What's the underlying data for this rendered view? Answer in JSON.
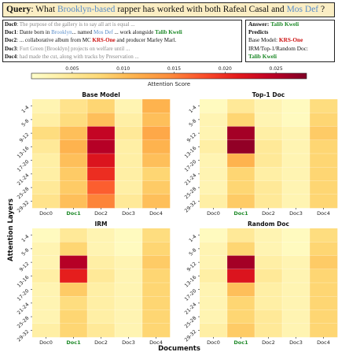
{
  "query": {
    "label": "Query",
    "text_a": ": What ",
    "text_b": "Brooklyn-based",
    "text_c": " rapper has worked with both Rafeal Casal and ",
    "text_d": "Mos Def",
    "text_e": " ?"
  },
  "docs": [
    {
      "id": "Doc0",
      "parts": [
        {
          "t": "The purpose of the gallery is to say all art is equal ...",
          "c": "gray"
        }
      ]
    },
    {
      "id": "Doc1",
      "parts": [
        {
          "t": "Dante born in ",
          "c": ""
        },
        {
          "t": "Brooklyn",
          "c": "blue"
        },
        {
          "t": "... named ",
          "c": ""
        },
        {
          "t": "Mos Def",
          "c": "blue"
        },
        {
          "t": " ... work alongside ",
          "c": ""
        },
        {
          "t": "Talib Kweli",
          "c": "green"
        }
      ]
    },
    {
      "id": "Doc2",
      "parts": [
        {
          "t": "... collaborative album from MC ",
          "c": ""
        },
        {
          "t": "KRS-One",
          "c": "red"
        },
        {
          "t": " and producer Marley Marl.",
          "c": ""
        }
      ]
    },
    {
      "id": "Doc3",
      "parts": [
        {
          "t": "Fort Green [Brooklyn] projects on welfare until ...",
          "c": "gray"
        }
      ]
    },
    {
      "id": "Doc4",
      "parts": [
        {
          "t": "had made the cut, along with tracks by Preservation ...",
          "c": "gray"
        }
      ]
    }
  ],
  "answer": {
    "label": "Answer:",
    "value": "Talib Kweli",
    "predicts_label": "Predicts",
    "base_label": "Base Model: ",
    "base_value": "KRS-One",
    "irm_label": "IRM/Top-1/Random Doc:",
    "irm_value": "Talib Kweli"
  },
  "colorbar": {
    "label": "Attention Score",
    "min": 0.001,
    "max": 0.028,
    "ticks": [
      "0.005",
      "0.010",
      "0.015",
      "0.020",
      "0.025"
    ]
  },
  "axes": {
    "ylabel": "Attention Layers",
    "xlabel": "Documents"
  },
  "chart_data": [
    {
      "type": "heatmap",
      "title": "Base Model",
      "x": [
        "Doc0",
        "Doc1",
        "Doc2",
        "Doc3",
        "Doc4"
      ],
      "highlight_x": "Doc1",
      "y": [
        "1-4",
        "5-8",
        "9-12",
        "13-16",
        "17-20",
        "21-24",
        "25-28",
        "29-32"
      ],
      "values": [
        [
          0.003,
          0.006,
          0.008,
          0.003,
          0.011
        ],
        [
          0.004,
          0.007,
          0.01,
          0.004,
          0.01
        ],
        [
          0.007,
          0.01,
          0.024,
          0.005,
          0.012
        ],
        [
          0.005,
          0.011,
          0.025,
          0.004,
          0.011
        ],
        [
          0.004,
          0.01,
          0.022,
          0.004,
          0.01
        ],
        [
          0.004,
          0.009,
          0.02,
          0.004,
          0.008
        ],
        [
          0.005,
          0.009,
          0.017,
          0.004,
          0.009
        ],
        [
          0.006,
          0.01,
          0.015,
          0.005,
          0.01
        ]
      ]
    },
    {
      "type": "heatmap",
      "title": "Top-1 Doc",
      "x": [
        "Doc0",
        "Doc1",
        "Doc2",
        "Doc3",
        "Doc4"
      ],
      "highlight_x": "Doc1",
      "y": [
        "1-4",
        "5-8",
        "9-12",
        "13-16",
        "17-20",
        "21-24",
        "25-28",
        "29-32"
      ],
      "values": [
        [
          0.002,
          0.005,
          0.003,
          0.002,
          0.007
        ],
        [
          0.003,
          0.008,
          0.003,
          0.002,
          0.008
        ],
        [
          0.003,
          0.026,
          0.004,
          0.003,
          0.009
        ],
        [
          0.004,
          0.027,
          0.005,
          0.003,
          0.008
        ],
        [
          0.003,
          0.011,
          0.005,
          0.003,
          0.008
        ],
        [
          0.003,
          0.008,
          0.004,
          0.003,
          0.008
        ],
        [
          0.003,
          0.008,
          0.005,
          0.003,
          0.008
        ],
        [
          0.004,
          0.009,
          0.005,
          0.003,
          0.008
        ]
      ]
    },
    {
      "type": "heatmap",
      "title": "IRM",
      "x": [
        "Doc0",
        "Doc1",
        "Doc2",
        "Doc3",
        "Doc4"
      ],
      "highlight_x": "Doc1",
      "y": [
        "1-4",
        "5-8",
        "9-12",
        "13-16",
        "17-20",
        "21-24",
        "25-28",
        "29-32"
      ],
      "values": [
        [
          0.002,
          0.005,
          0.003,
          0.002,
          0.007
        ],
        [
          0.003,
          0.008,
          0.003,
          0.002,
          0.008
        ],
        [
          0.003,
          0.025,
          0.004,
          0.003,
          0.009
        ],
        [
          0.004,
          0.021,
          0.005,
          0.003,
          0.008
        ],
        [
          0.003,
          0.009,
          0.004,
          0.003,
          0.008
        ],
        [
          0.003,
          0.007,
          0.004,
          0.003,
          0.008
        ],
        [
          0.003,
          0.008,
          0.004,
          0.003,
          0.008
        ],
        [
          0.004,
          0.008,
          0.005,
          0.003,
          0.008
        ]
      ]
    },
    {
      "type": "heatmap",
      "title": "Random Doc",
      "x": [
        "Doc0",
        "Doc1",
        "Doc2",
        "Doc3",
        "Doc4"
      ],
      "highlight_x": "Doc1",
      "y": [
        "1-4",
        "5-8",
        "9-12",
        "13-16",
        "17-20",
        "21-24",
        "25-28",
        "29-32"
      ],
      "values": [
        [
          0.002,
          0.005,
          0.003,
          0.002,
          0.007
        ],
        [
          0.003,
          0.008,
          0.003,
          0.002,
          0.008
        ],
        [
          0.003,
          0.026,
          0.004,
          0.003,
          0.009
        ],
        [
          0.004,
          0.022,
          0.005,
          0.003,
          0.008
        ],
        [
          0.003,
          0.01,
          0.004,
          0.003,
          0.008
        ],
        [
          0.003,
          0.008,
          0.004,
          0.003,
          0.008
        ],
        [
          0.003,
          0.008,
          0.005,
          0.003,
          0.008
        ],
        [
          0.004,
          0.009,
          0.005,
          0.003,
          0.008
        ]
      ]
    }
  ]
}
